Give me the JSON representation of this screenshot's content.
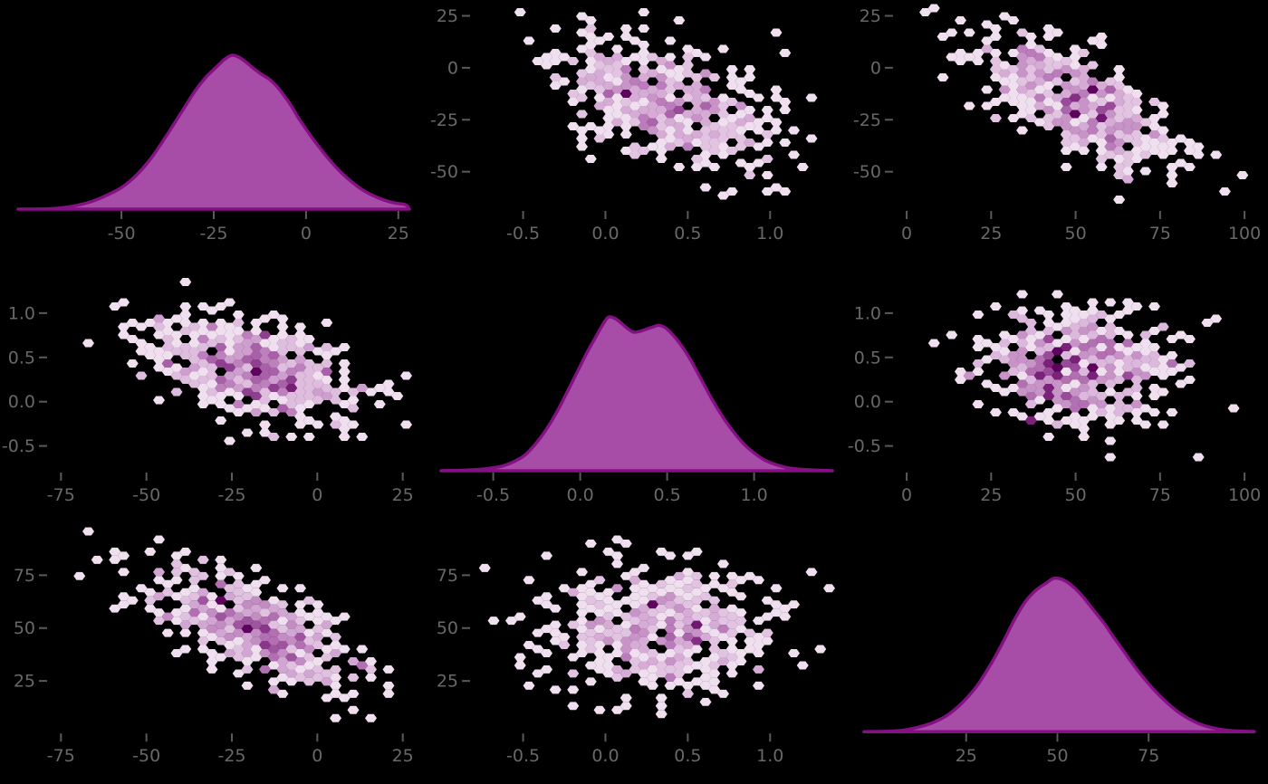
{
  "chart_data": {
    "type": "heatmap",
    "subtype": "pairplot-matrix-3x3",
    "title": "",
    "grid": {
      "rows": 3,
      "cols": 3,
      "diagonal": "kde",
      "offdiagonal": "hexbin"
    },
    "legend": "none",
    "axes_style": "no-spines, outward gray ticks only, black background",
    "colors": {
      "background": "#000000",
      "kde_fill": "#A74DA7",
      "kde_stroke": "#841084",
      "tick_label": "#686868",
      "tick_mark": "#5A5A5A",
      "hex_colormap": [
        "#EFDFEF",
        "#E3C6E3",
        "#D5ABD5",
        "#C48DC4",
        "#B06CB0",
        "#984A98",
        "#7A217A",
        "#5D025D"
      ]
    },
    "panels": [
      {
        "name": "kde-r0c0",
        "row": 0,
        "col": 0,
        "kind": "kde",
        "x_range": [
          -78,
          28
        ],
        "x_ticks": {
          "values": [
            -50,
            -25,
            0,
            25
          ],
          "labels": [
            "-50",
            "-25",
            "0",
            "25"
          ]
        },
        "curve": [
          [
            -75,
            0.0
          ],
          [
            -68,
            0.005
          ],
          [
            -63,
            0.02
          ],
          [
            -58,
            0.05
          ],
          [
            -54,
            0.09
          ],
          [
            -50,
            0.14
          ],
          [
            -46,
            0.22
          ],
          [
            -42,
            0.33
          ],
          [
            -38,
            0.47
          ],
          [
            -34,
            0.62
          ],
          [
            -30,
            0.77
          ],
          [
            -27,
            0.86
          ],
          [
            -24,
            0.93
          ],
          [
            -22,
            0.975
          ],
          [
            -20,
            1.0
          ],
          [
            -18,
            0.985
          ],
          [
            -16,
            0.95
          ],
          [
            -14,
            0.91
          ],
          [
            -12,
            0.875
          ],
          [
            -10,
            0.845
          ],
          [
            -8,
            0.8
          ],
          [
            -6,
            0.74
          ],
          [
            -4,
            0.67
          ],
          [
            -2,
            0.59
          ],
          [
            0,
            0.52
          ],
          [
            3,
            0.42
          ],
          [
            6,
            0.33
          ],
          [
            9,
            0.25
          ],
          [
            12,
            0.185
          ],
          [
            15,
            0.13
          ],
          [
            18,
            0.09
          ],
          [
            21,
            0.06
          ],
          [
            24,
            0.04
          ],
          [
            27,
            0.028
          ]
        ]
      },
      {
        "name": "hexbin-r0c1",
        "row": 0,
        "col": 1,
        "kind": "hexbin",
        "x_range": [
          -0.8,
          1.4
        ],
        "y_range": [
          -68,
          30
        ],
        "x_ticks": {
          "values": [
            -0.5,
            0.0,
            0.5,
            1.0
          ],
          "labels": [
            "-0.5",
            "0.0",
            "0.5",
            "1.0"
          ]
        },
        "y_ticks": {
          "values": [
            25,
            0,
            -25,
            -50
          ],
          "labels": [
            "25",
            "0",
            "-25",
            "-50"
          ]
        },
        "dist": {
          "mean_x": 0.35,
          "sd_x": 0.32,
          "mean_y": -16,
          "sd_y": 15.5,
          "rho": -0.48,
          "n": 520,
          "seed": 11
        }
      },
      {
        "name": "hexbin-r0c2",
        "row": 0,
        "col": 2,
        "kind": "hexbin",
        "x_range": [
          -3,
          104
        ],
        "y_range": [
          -68,
          30
        ],
        "x_ticks": {
          "values": [
            0,
            25,
            50,
            75,
            100
          ],
          "labels": [
            "0",
            "25",
            "50",
            "75",
            "100"
          ]
        },
        "y_ticks": {
          "values": [
            25,
            0,
            -25,
            -50
          ],
          "labels": [
            "25",
            "0",
            "-25",
            "-50"
          ]
        },
        "dist": {
          "mean_x": 50,
          "sd_x": 14.5,
          "mean_y": -16,
          "sd_y": 15.5,
          "rho": -0.68,
          "n": 520,
          "seed": 22
        }
      },
      {
        "name": "hexbin-r1c0",
        "row": 1,
        "col": 0,
        "kind": "hexbin",
        "x_range": [
          -78,
          28
        ],
        "y_range": [
          -0.78,
          1.52
        ],
        "x_ticks": {
          "values": [
            -75,
            -50,
            -25,
            0,
            25
          ],
          "labels": [
            "-75",
            "-50",
            "-25",
            "0",
            "25"
          ]
        },
        "y_ticks": {
          "values": [
            1.0,
            0.5,
            0.0,
            -0.5
          ],
          "labels": [
            "1.0",
            "0.5",
            "0.0",
            "-0.5"
          ]
        },
        "dist": {
          "mean_x": -19,
          "sd_x": 16,
          "mean_y": 0.36,
          "sd_y": 0.31,
          "rho": -0.48,
          "n": 520,
          "seed": 33
        }
      },
      {
        "name": "kde-r1c1",
        "row": 1,
        "col": 1,
        "kind": "kde",
        "x_range": [
          -0.8,
          1.45
        ],
        "x_ticks": {
          "values": [
            -0.5,
            0.0,
            0.5,
            1.0
          ],
          "labels": [
            "-0.5",
            "0.0",
            "0.5",
            "1.0"
          ]
        },
        "curve": [
          [
            -0.65,
            0.004
          ],
          [
            -0.55,
            0.012
          ],
          [
            -0.45,
            0.03
          ],
          [
            -0.38,
            0.06
          ],
          [
            -0.32,
            0.1
          ],
          [
            -0.26,
            0.17
          ],
          [
            -0.2,
            0.26
          ],
          [
            -0.14,
            0.37
          ],
          [
            -0.08,
            0.5
          ],
          [
            -0.02,
            0.635
          ],
          [
            0.04,
            0.77
          ],
          [
            0.08,
            0.85
          ],
          [
            0.12,
            0.93
          ],
          [
            0.15,
            0.985
          ],
          [
            0.17,
            1.0
          ],
          [
            0.2,
            0.99
          ],
          [
            0.23,
            0.965
          ],
          [
            0.26,
            0.935
          ],
          [
            0.29,
            0.91
          ],
          [
            0.31,
            0.9
          ],
          [
            0.34,
            0.905
          ],
          [
            0.38,
            0.92
          ],
          [
            0.42,
            0.935
          ],
          [
            0.45,
            0.945
          ],
          [
            0.48,
            0.935
          ],
          [
            0.51,
            0.91
          ],
          [
            0.55,
            0.86
          ],
          [
            0.59,
            0.8
          ],
          [
            0.64,
            0.71
          ],
          [
            0.7,
            0.585
          ],
          [
            0.76,
            0.46
          ],
          [
            0.82,
            0.35
          ],
          [
            0.88,
            0.255
          ],
          [
            0.94,
            0.175
          ],
          [
            1.0,
            0.115
          ],
          [
            1.06,
            0.07
          ],
          [
            1.13,
            0.038
          ],
          [
            1.2,
            0.018
          ],
          [
            1.28,
            0.008
          ],
          [
            1.38,
            0.003
          ]
        ]
      },
      {
        "name": "hexbin-r1c2",
        "row": 1,
        "col": 2,
        "kind": "hexbin",
        "x_range": [
          -3,
          104
        ],
        "y_range": [
          -0.78,
          1.52
        ],
        "x_ticks": {
          "values": [
            0,
            25,
            50,
            75,
            100
          ],
          "labels": [
            "0",
            "25",
            "50",
            "75",
            "100"
          ]
        },
        "y_ticks": {
          "values": [
            1.0,
            0.5,
            0.0,
            -0.5
          ],
          "labels": [
            "1.0",
            "0.5",
            "0.0",
            "-0.5"
          ]
        },
        "dist": {
          "mean_x": 50,
          "sd_x": 14.5,
          "mean_y": 0.36,
          "sd_y": 0.31,
          "rho": 0.04,
          "n": 520,
          "seed": 44
        }
      },
      {
        "name": "hexbin-r2c0",
        "row": 2,
        "col": 0,
        "kind": "hexbin",
        "x_range": [
          -78,
          28
        ],
        "y_range": [
          1,
          97
        ],
        "x_ticks": {
          "values": [
            -75,
            -50,
            -25,
            0,
            25
          ],
          "labels": [
            "-75",
            "-50",
            "-25",
            "0",
            "25"
          ]
        },
        "y_ticks": {
          "values": [
            75,
            50,
            25
          ],
          "labels": [
            "75",
            "50",
            "25"
          ]
        },
        "dist": {
          "mean_x": -19,
          "sd_x": 16,
          "mean_y": 50,
          "sd_y": 14.5,
          "rho": -0.68,
          "n": 520,
          "seed": 55
        }
      },
      {
        "name": "hexbin-r2c1",
        "row": 2,
        "col": 1,
        "kind": "hexbin",
        "x_range": [
          -0.8,
          1.4
        ],
        "y_range": [
          1,
          97
        ],
        "x_ticks": {
          "values": [
            -0.5,
            0.0,
            0.5,
            1.0
          ],
          "labels": [
            "-0.5",
            "0.0",
            "0.5",
            "1.0"
          ]
        },
        "y_ticks": {
          "values": [
            75,
            50,
            25
          ],
          "labels": [
            "75",
            "50",
            "25"
          ]
        },
        "dist": {
          "mean_x": 0.35,
          "sd_x": 0.32,
          "mean_y": 50,
          "sd_y": 14.5,
          "rho": 0.05,
          "n": 520,
          "seed": 66
        }
      },
      {
        "name": "kde-r2c2",
        "row": 2,
        "col": 2,
        "kind": "kde",
        "x_range": [
          -3,
          104
        ],
        "x_ticks": {
          "values": [
            25,
            50,
            75
          ],
          "labels": [
            "25",
            "50",
            "75"
          ]
        },
        "curve": [
          [
            4,
            0.003
          ],
          [
            8,
            0.01
          ],
          [
            12,
            0.03
          ],
          [
            16,
            0.06
          ],
          [
            20,
            0.11
          ],
          [
            24,
            0.19
          ],
          [
            28,
            0.3
          ],
          [
            32,
            0.45
          ],
          [
            35,
            0.58
          ],
          [
            38,
            0.72
          ],
          [
            41,
            0.84
          ],
          [
            44,
            0.92
          ],
          [
            47,
            0.97
          ],
          [
            49,
            1.0
          ],
          [
            51,
            0.995
          ],
          [
            53,
            0.97
          ],
          [
            55,
            0.93
          ],
          [
            57,
            0.88
          ],
          [
            59,
            0.82
          ],
          [
            61,
            0.76
          ],
          [
            63,
            0.7
          ],
          [
            65,
            0.63
          ],
          [
            68,
            0.53
          ],
          [
            71,
            0.43
          ],
          [
            74,
            0.34
          ],
          [
            77,
            0.26
          ],
          [
            80,
            0.19
          ],
          [
            83,
            0.13
          ],
          [
            86,
            0.085
          ],
          [
            89,
            0.05
          ],
          [
            92,
            0.028
          ],
          [
            95,
            0.014
          ],
          [
            98,
            0.006
          ]
        ]
      }
    ]
  }
}
